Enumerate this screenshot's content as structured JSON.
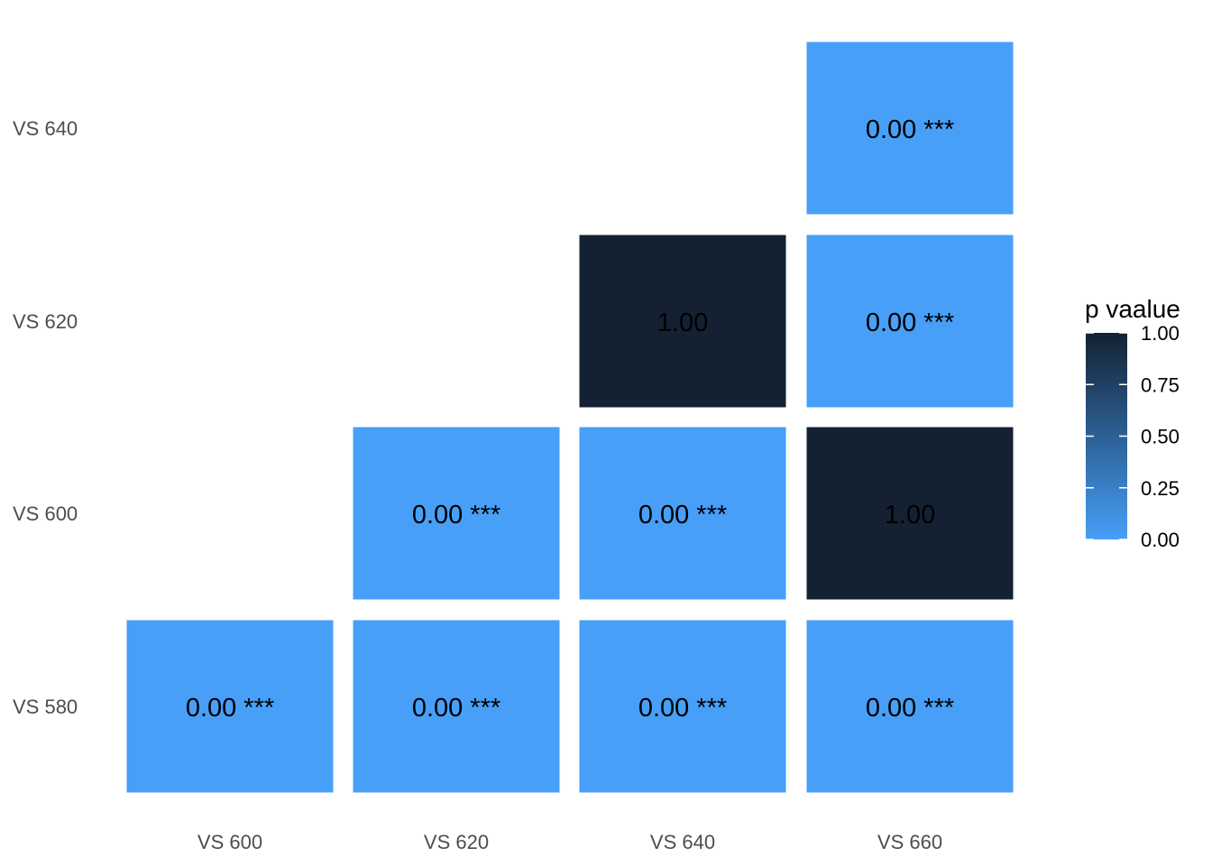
{
  "chart_data": {
    "type": "heatmap",
    "x_categories": [
      "VS 600",
      "VS 620",
      "VS 640",
      "VS 660"
    ],
    "y_categories": [
      "VS 580",
      "VS 600",
      "VS 620",
      "VS 640"
    ],
    "cells": [
      {
        "x": "VS 600",
        "y": "VS 580",
        "value": 0.0,
        "label": "0.00 ***"
      },
      {
        "x": "VS 620",
        "y": "VS 580",
        "value": 0.0,
        "label": "0.00 ***"
      },
      {
        "x": "VS 640",
        "y": "VS 580",
        "value": 0.0,
        "label": "0.00 ***"
      },
      {
        "x": "VS 660",
        "y": "VS 580",
        "value": 0.0,
        "label": "0.00 ***"
      },
      {
        "x": "VS 620",
        "y": "VS 600",
        "value": 0.0,
        "label": "0.00 ***"
      },
      {
        "x": "VS 640",
        "y": "VS 600",
        "value": 0.0,
        "label": "0.00 ***"
      },
      {
        "x": "VS 660",
        "y": "VS 600",
        "value": 1.0,
        "label": "1.00"
      },
      {
        "x": "VS 640",
        "y": "VS 620",
        "value": 1.0,
        "label": "1.00"
      },
      {
        "x": "VS 660",
        "y": "VS 620",
        "value": 0.0,
        "label": "0.00 ***"
      },
      {
        "x": "VS 660",
        "y": "VS 640",
        "value": 0.0,
        "label": "0.00 ***"
      }
    ],
    "title": "",
    "xlabel": "",
    "ylabel": "",
    "grid": false,
    "legend": {
      "title": "p vaalue",
      "placement": "right",
      "ticks": [
        "0.00",
        "0.25",
        "0.50",
        "0.75",
        "1.00"
      ],
      "range": [
        0,
        1
      ],
      "color_low": "#479ff8",
      "color_high": "#132132"
    }
  }
}
